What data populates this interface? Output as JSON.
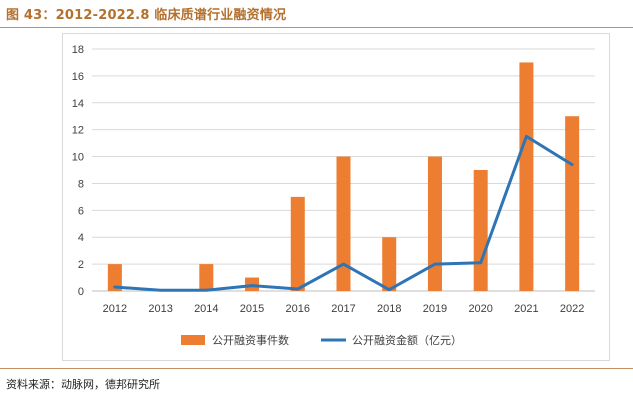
{
  "figure": {
    "title": "图 43：2012-2022.8 临床质谱行业融资情况",
    "source": "资料来源：动脉网，德邦研究所"
  },
  "chart_data": {
    "type": "bar",
    "categories": [
      "2012",
      "2013",
      "2014",
      "2015",
      "2016",
      "2017",
      "2018",
      "2019",
      "2020",
      "2021",
      "2022"
    ],
    "ylim": [
      0,
      18
    ],
    "yticks": [
      "0",
      "2",
      "4",
      "6",
      "8",
      "10",
      "12",
      "14",
      "16",
      "18"
    ],
    "grid": true,
    "legend_position": "bottom",
    "series": [
      {
        "name": "公开融资事件数",
        "type": "bar",
        "color": "#ed7d31",
        "values": [
          2,
          0,
          2,
          1,
          7,
          10,
          4,
          10,
          9,
          17,
          13
        ]
      },
      {
        "name": "公开融资金额（亿元）",
        "type": "line",
        "color": "#2e75b6",
        "values": [
          0.3,
          0.05,
          0.05,
          0.4,
          0.15,
          2.0,
          0.1,
          2.0,
          2.1,
          11.5,
          9.4
        ]
      }
    ]
  }
}
